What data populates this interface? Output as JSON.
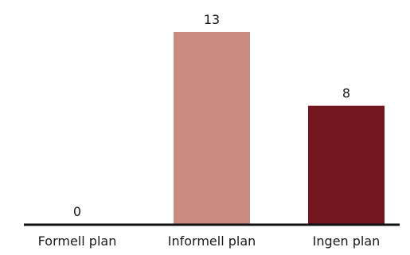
{
  "chart_data": {
    "type": "bar",
    "categories": [
      "Formell plan",
      "Informell plan",
      "Ingen plan"
    ],
    "values": [
      0,
      13,
      8
    ],
    "colors": [
      "#c98a80",
      "#c98a80",
      "#73161e"
    ],
    "data_labels": [
      "0",
      "13",
      "8"
    ],
    "title": "",
    "xlabel": "",
    "ylabel": "",
    "ylim": [
      0,
      13
    ],
    "grid": false,
    "legend": "none"
  }
}
